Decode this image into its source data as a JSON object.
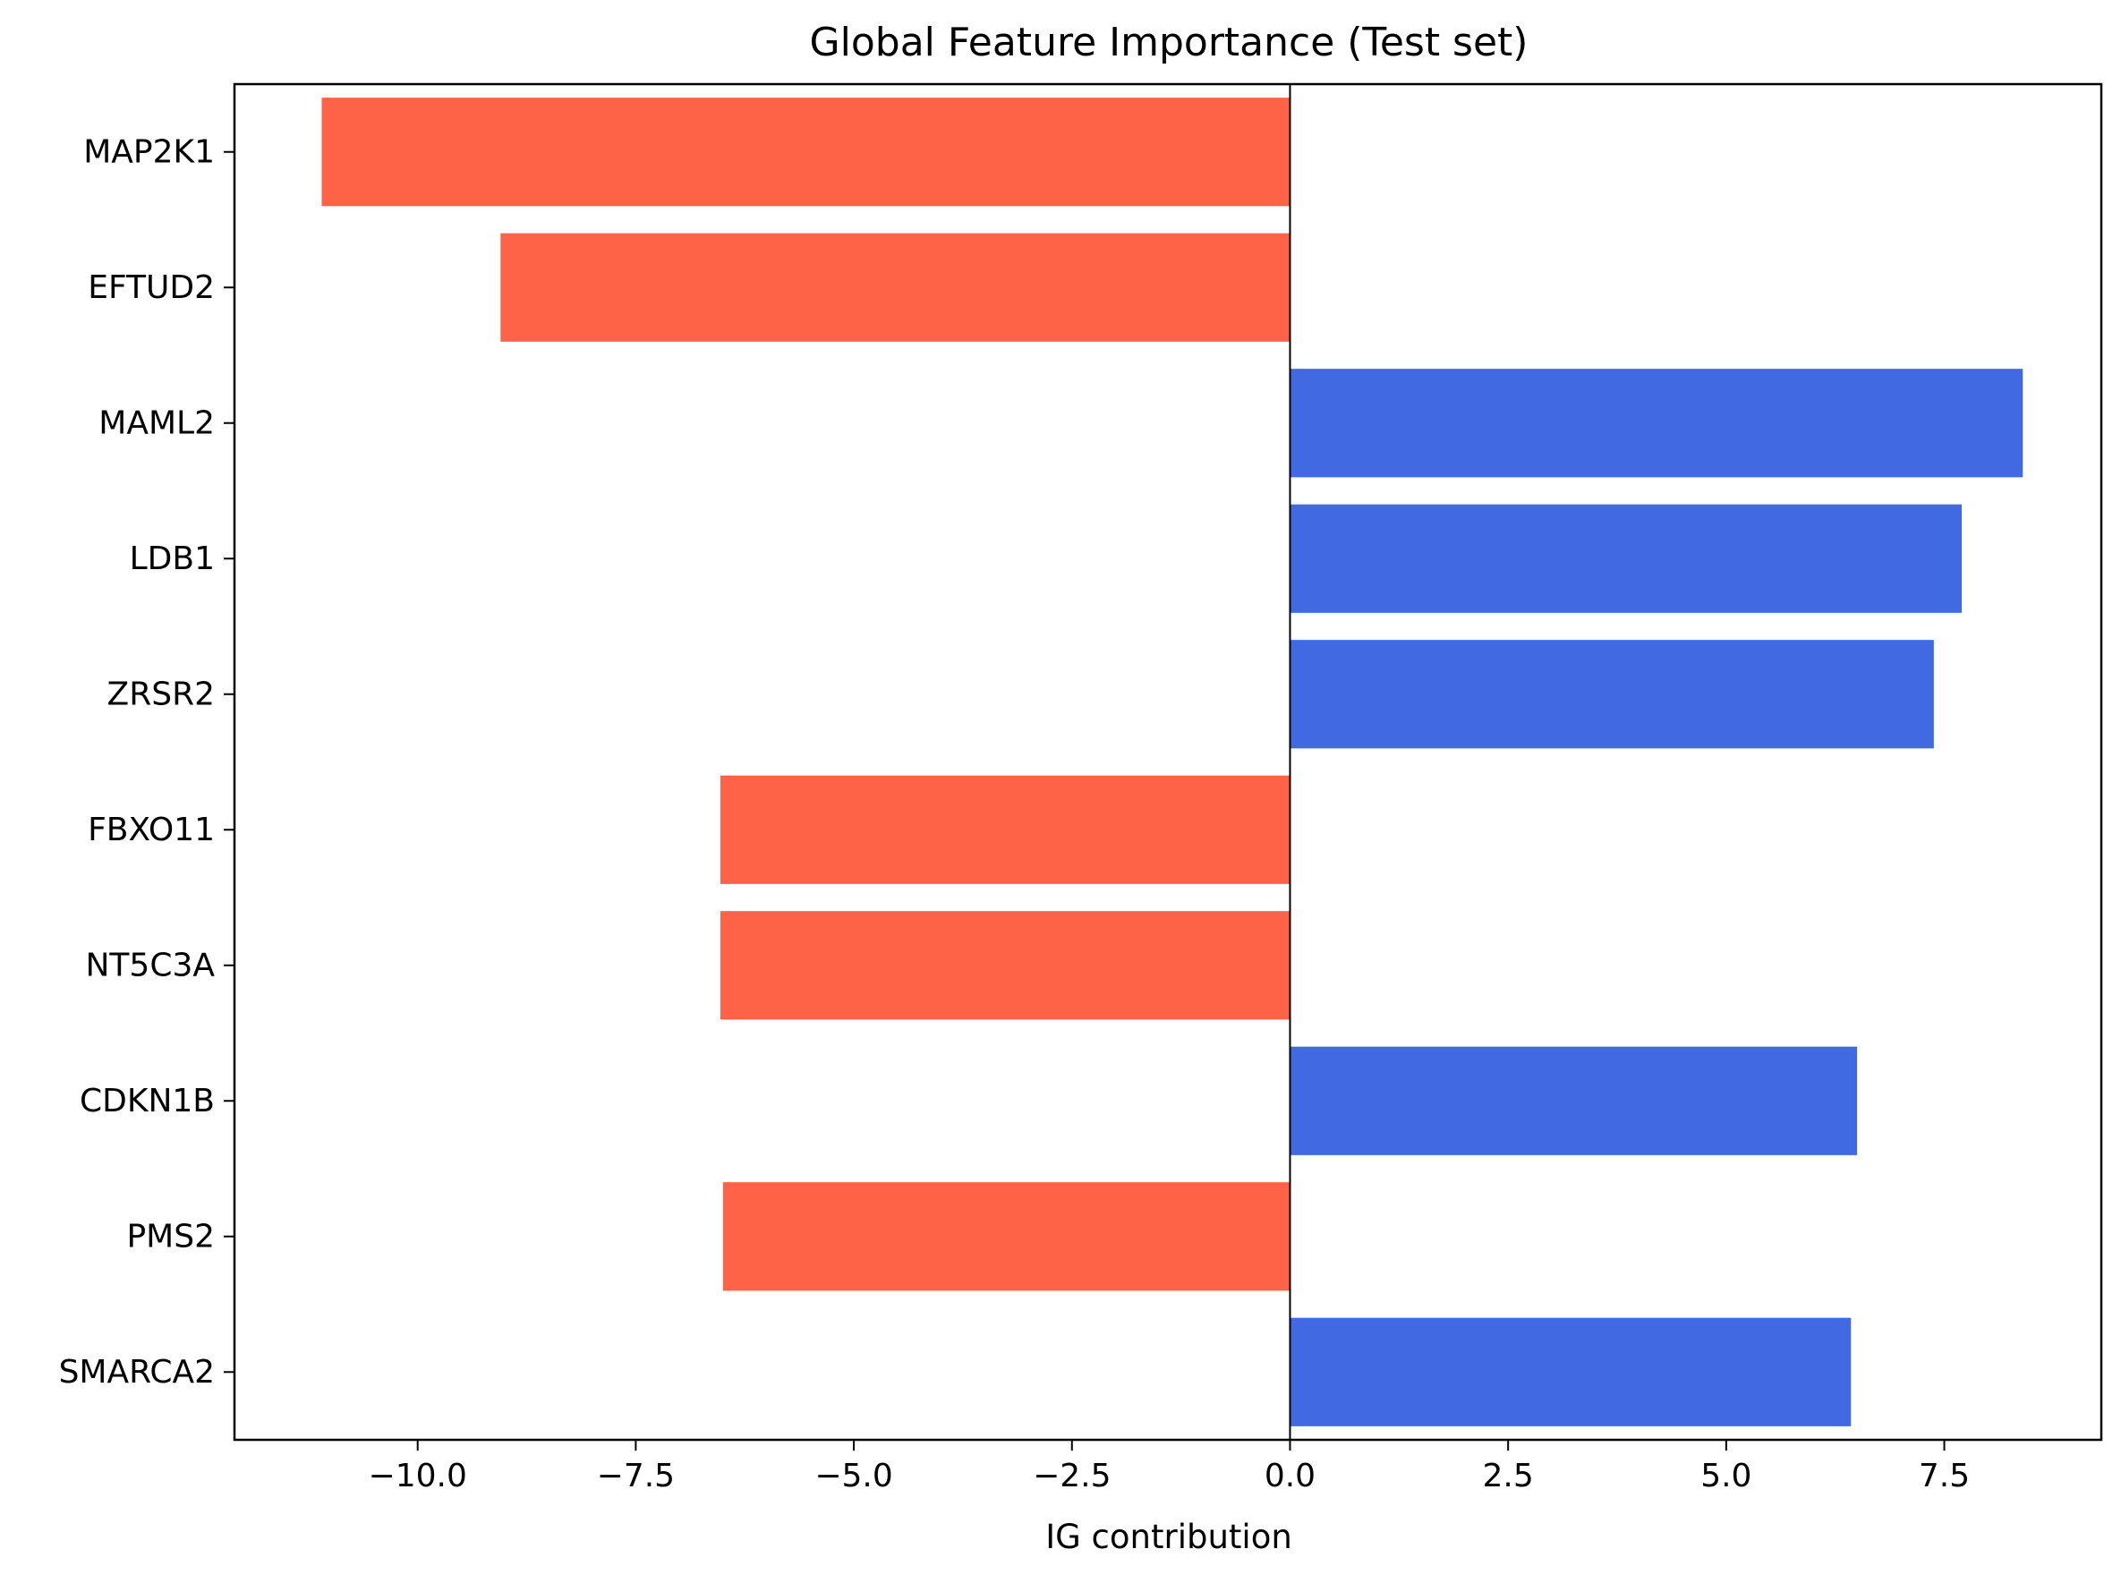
{
  "chart_data": {
    "type": "bar",
    "orientation": "horizontal",
    "title": "Global Feature Importance (Test set)",
    "xlabel": "IG contribution",
    "ylabel": "",
    "xlim": [
      -12.1,
      9.3
    ],
    "xticks": [
      -10.0,
      -7.5,
      -5.0,
      -2.5,
      0.0,
      2.5,
      5.0,
      7.5
    ],
    "xtick_labels": [
      "−10.0",
      "−7.5",
      "−5.0",
      "−2.5",
      "0.0",
      "2.5",
      "5.0",
      "7.5"
    ],
    "categories": [
      "MAP2K1",
      "EFTUD2",
      "MAML2",
      "LDB1",
      "ZRSR2",
      "FBXO11",
      "NT5C3A",
      "CDKN1B",
      "PMS2",
      "SMARCA2"
    ],
    "values": [
      -11.1,
      -9.05,
      8.4,
      7.7,
      7.38,
      -6.53,
      -6.53,
      6.5,
      -6.5,
      6.43
    ],
    "positive_color": "#4169e1",
    "negative_color": "#ff6347",
    "zero_line": true,
    "grid": false,
    "legend": "none"
  }
}
